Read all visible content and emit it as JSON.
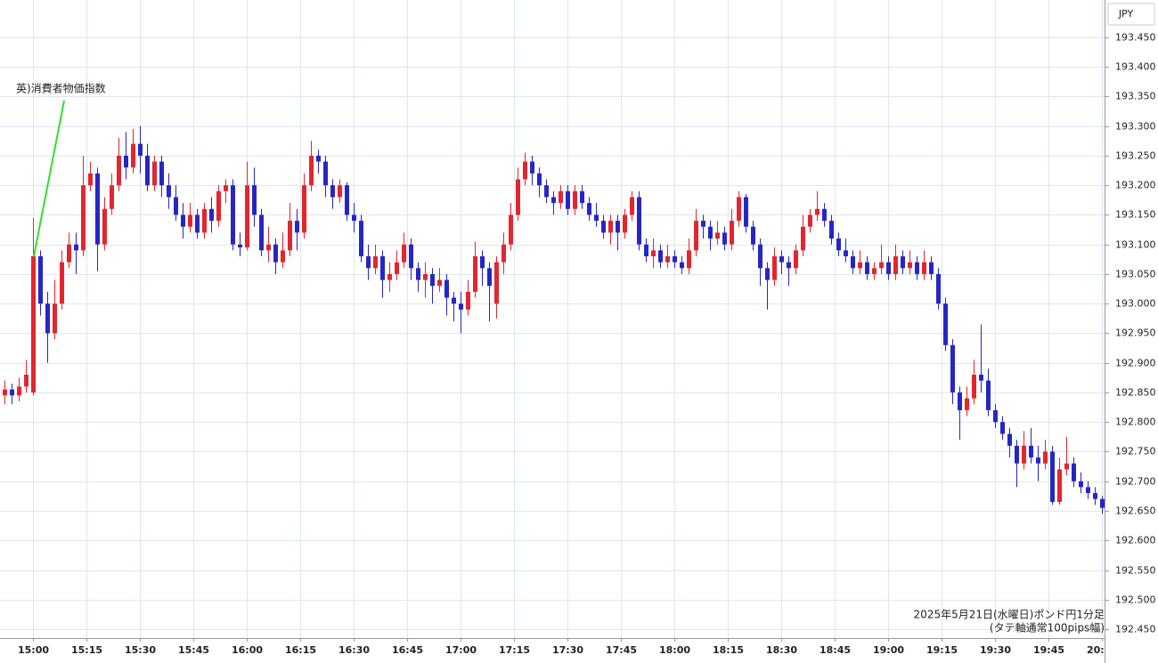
{
  "chart_data": {
    "type": "candlestick",
    "currency": "JPY",
    "up_color": "#e3262e",
    "down_color": "#2626c4",
    "grid": true,
    "xlim": [
      "14:51",
      "20:00"
    ],
    "ylim": [
      192.435,
      193.513
    ],
    "xticks": [
      "15:00",
      "15:15",
      "15:30",
      "15:45",
      "16:00",
      "16:15",
      "16:30",
      "16:45",
      "17:00",
      "17:15",
      "17:30",
      "17:45",
      "18:00",
      "18:15",
      "18:30",
      "18:45",
      "19:00",
      "19:15",
      "19:30",
      "19:45",
      "20:00"
    ],
    "yticks": [
      {
        "value": 192.45,
        "label": "192.450"
      },
      {
        "value": 192.5,
        "label": "192.500"
      },
      {
        "value": 192.55,
        "label": "192.550"
      },
      {
        "value": 192.6,
        "label": "192.600"
      },
      {
        "value": 192.65,
        "label": "192.650"
      },
      {
        "value": 192.7,
        "label": "192.700"
      },
      {
        "value": 192.75,
        "label": "192.750"
      },
      {
        "value": 192.8,
        "label": "192.800"
      },
      {
        "value": 192.85,
        "label": "192.850"
      },
      {
        "value": 192.9,
        "label": "192.900"
      },
      {
        "value": 192.95,
        "label": "192.950"
      },
      {
        "value": 193,
        "label": "193.000"
      },
      {
        "value": 193.05,
        "label": "193.050"
      },
      {
        "value": 193.1,
        "label": "193.100"
      },
      {
        "value": 193.15,
        "label": "193.150"
      },
      {
        "value": 193.2,
        "label": "193.200"
      },
      {
        "value": 193.25,
        "label": "193.250"
      },
      {
        "value": 193.3,
        "label": "193.300"
      },
      {
        "value": 193.35,
        "label": "193.350"
      },
      {
        "value": 193.4,
        "label": "193.400"
      },
      {
        "value": 193.45,
        "label": "193.450"
      }
    ],
    "annotation": {
      "text": "英)消費者物価指数",
      "x": "15:00",
      "y": 193.08
    },
    "notes": [
      "2025年5月21日(水曜日)ポンド円1分足",
      "(タテ軸通常100pips幅)"
    ],
    "x": [
      "14:52",
      "14:54",
      "14:56",
      "14:58",
      "15:00",
      "15:02",
      "15:04",
      "15:06",
      "15:08",
      "15:10",
      "15:12",
      "15:14",
      "15:16",
      "15:18",
      "15:20",
      "15:22",
      "15:24",
      "15:26",
      "15:28",
      "15:30",
      "15:32",
      "15:34",
      "15:36",
      "15:38",
      "15:40",
      "15:42",
      "15:44",
      "15:46",
      "15:48",
      "15:50",
      "15:52",
      "15:54",
      "15:56",
      "15:58",
      "16:00",
      "16:02",
      "16:04",
      "16:06",
      "16:08",
      "16:10",
      "16:12",
      "16:14",
      "16:16",
      "16:18",
      "16:20",
      "16:22",
      "16:24",
      "16:26",
      "16:28",
      "16:30",
      "16:32",
      "16:34",
      "16:36",
      "16:38",
      "16:40",
      "16:42",
      "16:44",
      "16:46",
      "16:48",
      "16:50",
      "16:52",
      "16:54",
      "16:56",
      "16:58",
      "17:00",
      "17:02",
      "17:04",
      "17:06",
      "17:08",
      "17:10",
      "17:12",
      "17:14",
      "17:16",
      "17:18",
      "17:20",
      "17:22",
      "17:24",
      "17:26",
      "17:28",
      "17:30",
      "17:32",
      "17:34",
      "17:36",
      "17:38",
      "17:40",
      "17:42",
      "17:44",
      "17:46",
      "17:48",
      "17:50",
      "17:52",
      "17:54",
      "17:56",
      "17:58",
      "18:00",
      "18:02",
      "18:04",
      "18:06",
      "18:08",
      "18:10",
      "18:12",
      "18:14",
      "18:16",
      "18:18",
      "18:20",
      "18:22",
      "18:24",
      "18:26",
      "18:28",
      "18:30",
      "18:32",
      "18:34",
      "18:36",
      "18:38",
      "18:40",
      "18:42",
      "18:44",
      "18:46",
      "18:48",
      "18:50",
      "18:52",
      "18:54",
      "18:56",
      "18:58",
      "19:00",
      "19:02",
      "19:04",
      "19:06",
      "19:08",
      "19:10",
      "19:12",
      "19:14",
      "19:16",
      "19:18",
      "19:20",
      "19:22",
      "19:24",
      "19:26",
      "19:28",
      "19:30",
      "19:32",
      "19:34",
      "19:36",
      "19:38",
      "19:40",
      "19:42",
      "19:44",
      "19:46",
      "19:48",
      "19:50",
      "19:52",
      "19:54",
      "19:56",
      "19:58",
      "20:00"
    ],
    "open": [
      192.845,
      192.855,
      192.845,
      192.86,
      192.85,
      193.08,
      193.0,
      192.95,
      193.0,
      193.07,
      193.1,
      193.09,
      193.2,
      193.22,
      193.1,
      193.16,
      193.2,
      193.25,
      193.23,
      193.27,
      193.25,
      193.2,
      193.24,
      193.2,
      193.18,
      193.15,
      193.13,
      193.15,
      193.12,
      193.16,
      193.14,
      193.19,
      193.2,
      193.1,
      193.095,
      193.2,
      193.15,
      193.09,
      193.1,
      193.07,
      193.09,
      193.14,
      193.12,
      193.2,
      193.25,
      193.24,
      193.2,
      193.18,
      193.2,
      193.15,
      193.14,
      193.08,
      193.06,
      193.08,
      193.04,
      193.05,
      193.07,
      193.1,
      193.06,
      193.04,
      193.05,
      193.03,
      193.04,
      193.01,
      193.0,
      192.99,
      193.02,
      193.08,
      193.06,
      193.0,
      193.07,
      193.1,
      193.15,
      193.21,
      193.24,
      193.22,
      193.2,
      193.18,
      193.17,
      193.19,
      193.16,
      193.19,
      193.17,
      193.15,
      193.14,
      193.12,
      193.14,
      193.12,
      193.15,
      193.18,
      193.1,
      193.08,
      193.09,
      193.07,
      193.08,
      193.07,
      193.06,
      193.09,
      193.14,
      193.13,
      193.11,
      193.12,
      193.1,
      193.14,
      193.18,
      193.13,
      193.1,
      193.06,
      193.04,
      193.08,
      193.07,
      193.06,
      193.09,
      193.13,
      193.15,
      193.16,
      193.14,
      193.11,
      193.09,
      193.08,
      193.06,
      193.07,
      193.05,
      193.06,
      193.07,
      193.05,
      193.08,
      193.06,
      193.07,
      193.05,
      193.07,
      193.05,
      193.0,
      192.93,
      192.85,
      192.82,
      192.84,
      192.88,
      192.87,
      192.82,
      192.8,
      192.78,
      192.76,
      192.73,
      192.76,
      192.74,
      192.73,
      192.75,
      192.665,
      192.72,
      192.73,
      192.7,
      192.69,
      192.68,
      192.67
    ],
    "high": [
      192.87,
      192.865,
      192.875,
      192.905,
      193.145,
      193.09,
      193.02,
      193.04,
      193.09,
      193.12,
      193.12,
      193.25,
      193.24,
      193.23,
      193.18,
      193.22,
      193.28,
      193.29,
      193.295,
      193.3,
      193.27,
      193.25,
      193.25,
      193.22,
      193.2,
      193.17,
      193.17,
      193.16,
      193.17,
      193.18,
      193.2,
      193.21,
      193.21,
      193.12,
      193.24,
      193.23,
      193.16,
      193.13,
      193.11,
      193.12,
      193.17,
      193.16,
      193.22,
      193.275,
      193.26,
      193.25,
      193.21,
      193.21,
      193.205,
      193.17,
      193.15,
      193.1,
      193.1,
      193.09,
      193.07,
      193.09,
      193.12,
      193.11,
      193.07,
      193.07,
      193.06,
      193.06,
      193.05,
      193.02,
      193.02,
      193.04,
      193.105,
      193.09,
      193.07,
      193.08,
      193.12,
      193.17,
      193.23,
      193.255,
      193.25,
      193.23,
      193.21,
      193.19,
      193.2,
      193.2,
      193.2,
      193.2,
      193.18,
      193.17,
      193.15,
      193.15,
      193.15,
      193.16,
      193.19,
      193.19,
      193.11,
      193.11,
      193.1,
      193.1,
      193.09,
      193.08,
      193.11,
      193.16,
      193.15,
      193.14,
      193.14,
      193.13,
      193.16,
      193.19,
      193.185,
      193.14,
      193.11,
      193.07,
      193.095,
      193.09,
      193.08,
      193.1,
      193.15,
      193.16,
      193.19,
      193.17,
      193.15,
      193.12,
      193.11,
      193.09,
      193.09,
      193.08,
      193.07,
      193.1,
      193.08,
      193.1,
      193.09,
      193.09,
      193.08,
      193.09,
      193.08,
      193.06,
      193.01,
      192.94,
      192.86,
      192.86,
      192.905,
      192.965,
      192.89,
      192.83,
      192.81,
      192.79,
      192.77,
      192.785,
      192.79,
      192.76,
      192.77,
      192.76,
      192.74,
      192.775,
      192.74,
      192.715,
      192.7,
      192.69,
      192.675
    ],
    "low": [
      192.83,
      192.83,
      192.835,
      192.85,
      192.845,
      192.98,
      192.9,
      192.94,
      192.99,
      193.06,
      193.05,
      193.08,
      193.19,
      193.055,
      193.09,
      193.15,
      193.19,
      193.21,
      193.22,
      193.22,
      193.19,
      193.19,
      193.18,
      193.16,
      193.14,
      193.11,
      193.12,
      193.11,
      193.11,
      193.12,
      193.13,
      193.17,
      193.09,
      193.08,
      193.09,
      193.13,
      193.08,
      193.07,
      193.05,
      193.06,
      193.08,
      193.09,
      193.11,
      193.19,
      193.22,
      193.18,
      193.16,
      193.17,
      193.14,
      193.12,
      193.07,
      193.04,
      193.05,
      193.01,
      193.02,
      193.04,
      193.06,
      193.04,
      193.02,
      193.01,
      193.0,
      193.02,
      192.98,
      192.97,
      192.95,
      192.98,
      193.01,
      193.03,
      192.97,
      192.975,
      193.05,
      193.09,
      193.14,
      193.2,
      193.2,
      193.18,
      193.17,
      193.15,
      193.16,
      193.15,
      193.15,
      193.16,
      193.14,
      193.13,
      193.11,
      193.1,
      193.09,
      193.11,
      193.14,
      193.09,
      193.07,
      193.06,
      193.06,
      193.06,
      193.06,
      193.05,
      193.05,
      193.08,
      193.11,
      193.09,
      193.1,
      193.09,
      193.09,
      193.13,
      193.12,
      193.09,
      193.03,
      192.99,
      193.03,
      193.05,
      193.03,
      193.05,
      193.08,
      193.12,
      193.14,
      193.13,
      193.1,
      193.08,
      193.07,
      193.05,
      193.05,
      193.04,
      193.04,
      193.05,
      193.04,
      193.04,
      193.05,
      193.05,
      193.04,
      193.04,
      193.04,
      192.99,
      192.92,
      192.83,
      192.77,
      192.81,
      192.83,
      192.85,
      192.81,
      192.79,
      192.77,
      192.74,
      192.69,
      192.72,
      192.73,
      192.7,
      192.72,
      192.66,
      192.66,
      192.71,
      192.69,
      192.68,
      192.67,
      192.66,
      192.645
    ],
    "close": [
      192.855,
      192.845,
      192.86,
      192.88,
      193.08,
      193.0,
      192.95,
      193.0,
      193.07,
      193.1,
      193.09,
      193.2,
      193.22,
      193.1,
      193.16,
      193.2,
      193.25,
      193.23,
      193.27,
      193.25,
      193.2,
      193.24,
      193.2,
      193.18,
      193.15,
      193.13,
      193.15,
      193.12,
      193.16,
      193.14,
      193.19,
      193.2,
      193.1,
      193.095,
      193.2,
      193.15,
      193.09,
      193.1,
      193.07,
      193.09,
      193.14,
      193.12,
      193.2,
      193.25,
      193.24,
      193.2,
      193.18,
      193.2,
      193.15,
      193.14,
      193.08,
      193.06,
      193.08,
      193.04,
      193.05,
      193.07,
      193.1,
      193.06,
      193.04,
      193.05,
      193.03,
      193.04,
      193.01,
      193.0,
      192.99,
      193.02,
      193.08,
      193.06,
      193.03,
      193.07,
      193.1,
      193.15,
      193.21,
      193.24,
      193.22,
      193.2,
      193.18,
      193.17,
      193.19,
      193.16,
      193.19,
      193.17,
      193.15,
      193.14,
      193.12,
      193.14,
      193.12,
      193.15,
      193.18,
      193.1,
      193.08,
      193.09,
      193.07,
      193.08,
      193.07,
      193.06,
      193.09,
      193.14,
      193.13,
      193.11,
      193.12,
      193.1,
      193.14,
      193.18,
      193.13,
      193.1,
      193.06,
      193.04,
      193.08,
      193.07,
      193.06,
      193.09,
      193.13,
      193.15,
      193.16,
      193.14,
      193.11,
      193.09,
      193.08,
      193.06,
      193.07,
      193.05,
      193.06,
      193.07,
      193.05,
      193.08,
      193.06,
      193.07,
      193.05,
      193.07,
      193.05,
      193.0,
      192.93,
      192.85,
      192.82,
      192.84,
      192.88,
      192.87,
      192.82,
      192.8,
      192.78,
      192.76,
      192.73,
      192.76,
      192.74,
      192.73,
      192.75,
      192.665,
      192.72,
      192.73,
      192.7,
      192.69,
      192.68,
      192.67,
      192.655
    ]
  }
}
